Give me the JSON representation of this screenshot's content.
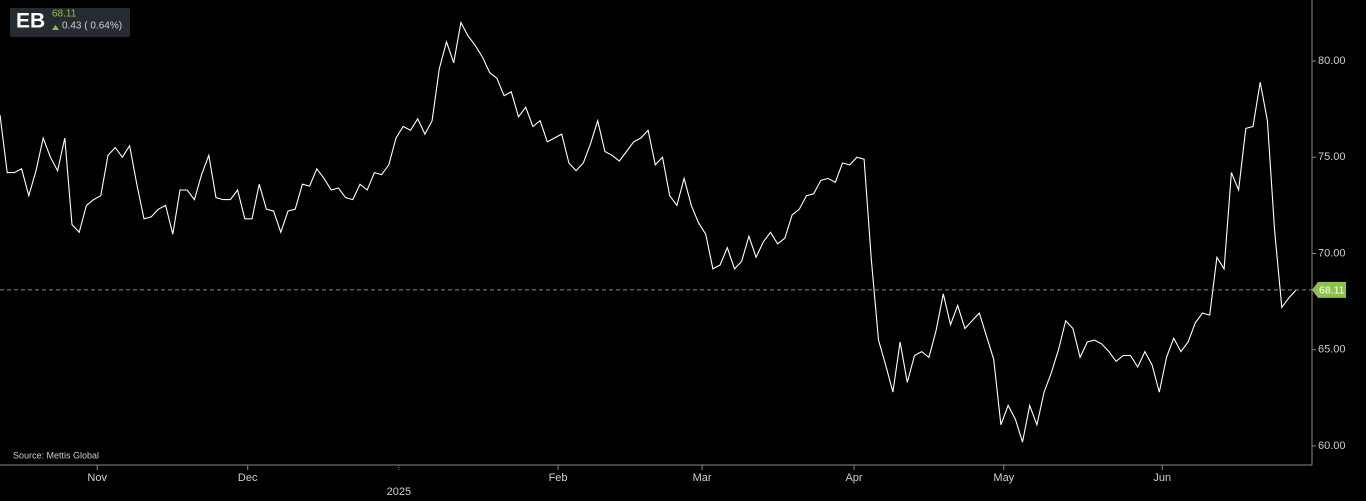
{
  "chart_data": {
    "type": "line",
    "ticker": "EB",
    "price": 68.11,
    "change": "0.43 ( 0.64%)",
    "source": "Source: Mettis Global",
    "color": "#ffffff",
    "up_color": "#8bc34a",
    "values": [
      77.2,
      74.2,
      74.2,
      74.4,
      73.0,
      74.3,
      76.0,
      75.0,
      74.3,
      76.0,
      71.5,
      71.1,
      72.5,
      72.8,
      73.0,
      75.1,
      75.5,
      75.0,
      75.6,
      73.6,
      71.8,
      71.9,
      72.3,
      72.5,
      71.0,
      73.3,
      73.3,
      72.8,
      74.1,
      75.1,
      72.9,
      72.8,
      72.8,
      73.3,
      71.8,
      71.8,
      73.6,
      72.3,
      72.2,
      71.1,
      72.2,
      72.3,
      73.6,
      73.5,
      74.4,
      73.9,
      73.3,
      73.4,
      72.9,
      72.8,
      73.6,
      73.3,
      74.2,
      74.1,
      74.6,
      76.0,
      76.6,
      76.4,
      77.0,
      76.2,
      76.9,
      79.6,
      81.0,
      79.9,
      82.0,
      81.3,
      80.8,
      80.2,
      79.4,
      79.1,
      78.2,
      78.4,
      77.1,
      77.6,
      76.6,
      76.9,
      75.8,
      76.0,
      76.2,
      74.7,
      74.3,
      74.7,
      75.7,
      76.9,
      75.3,
      75.1,
      74.8,
      75.3,
      75.8,
      76.0,
      76.4,
      74.6,
      75.0,
      73.0,
      72.5,
      73.9,
      72.5,
      71.6,
      71.0,
      69.2,
      69.4,
      70.3,
      69.2,
      69.6,
      70.9,
      69.8,
      70.6,
      71.1,
      70.5,
      70.8,
      72.0,
      72.3,
      73.0,
      73.1,
      73.8,
      73.9,
      73.7,
      74.7,
      74.6,
      75.0,
      74.9,
      69.7,
      65.5,
      64.2,
      62.8,
      65.4,
      63.3,
      64.7,
      64.9,
      64.6,
      66.0,
      67.9,
      66.3,
      67.3,
      66.1,
      66.5,
      66.9,
      65.7,
      64.5,
      61.1,
      62.1,
      61.4,
      60.2,
      62.1,
      61.1,
      62.8,
      63.8,
      65.0,
      66.5,
      66.1,
      64.6,
      65.4,
      65.5,
      65.3,
      64.9,
      64.4,
      64.7,
      64.7,
      64.1,
      64.9,
      64.2,
      62.8,
      64.6,
      65.6,
      64.9,
      65.4,
      66.4,
      66.9,
      66.8,
      69.8,
      69.2,
      74.2,
      73.3,
      76.5,
      76.6,
      78.9,
      76.9,
      71.2,
      67.2,
      67.7,
      68.11
    ],
    "xlim": [
      0,
      182.2
    ],
    "xticks": [
      {
        "value": 13.5,
        "label": "Nov"
      },
      {
        "value": 34.4,
        "label": "Dec"
      },
      {
        "value": 55.4,
        "label": "2025"
      },
      {
        "value": 77.5,
        "label": "Feb"
      },
      {
        "value": 97.5,
        "label": "Mar"
      },
      {
        "value": 118.6,
        "label": "Apr"
      },
      {
        "value": 139.4,
        "label": "May"
      },
      {
        "value": 161.4,
        "label": "Jun"
      }
    ],
    "ylim": [
      59.01,
      83.17
    ],
    "yticks": [
      {
        "value": 60,
        "label": "60.00"
      },
      {
        "value": 65,
        "label": "65.00"
      },
      {
        "value": 70,
        "label": "70.00"
      },
      {
        "value": 75,
        "label": "75.00"
      },
      {
        "value": 80,
        "label": "80.00"
      }
    ]
  }
}
